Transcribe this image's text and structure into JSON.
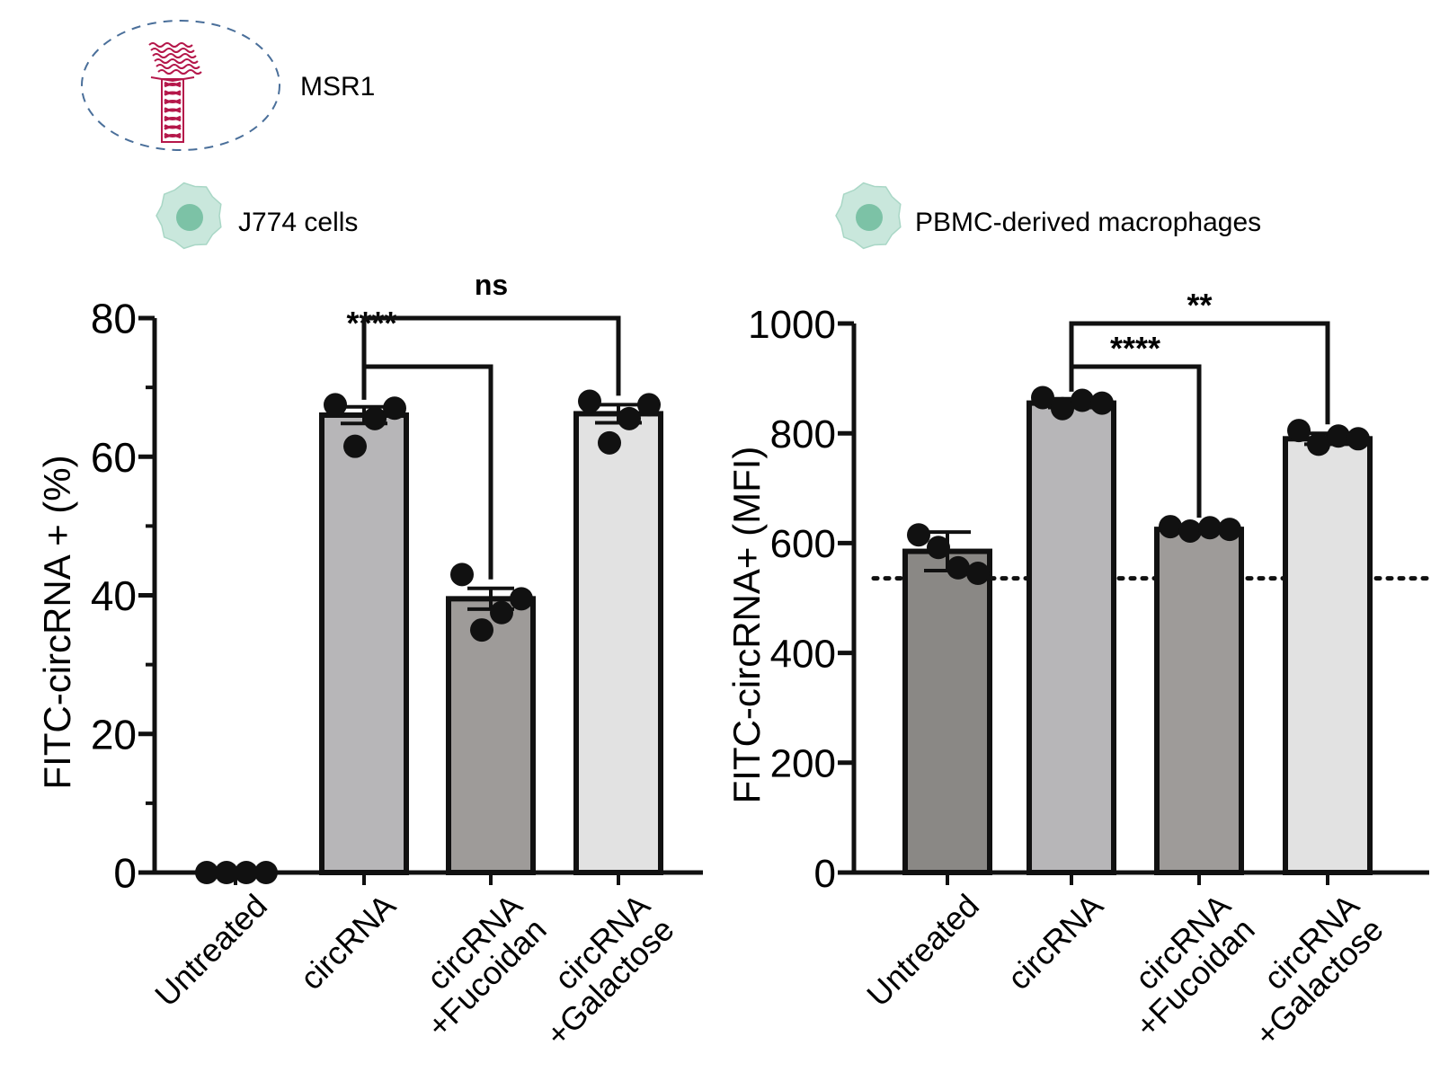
{
  "header": {
    "receptor_label": "MSR1",
    "left_cell_label": "J774 cells",
    "right_cell_label": "PBMC-derived macrophages"
  },
  "colors": {
    "receptor": "#b5174a",
    "oval_dash": "#4a6f9a",
    "cell_outer": "#c9e7dc",
    "cell_nucleus": "#7cc2a6"
  },
  "chart_data": [
    {
      "type": "bar",
      "ylabel": "FITC-circRNA + (%)",
      "xlabel": "",
      "ylim": [
        0,
        80
      ],
      "yticks": [
        0,
        20,
        40,
        60,
        80
      ],
      "categories": [
        "Untreated",
        "circRNA",
        "circRNA\n+Fucoidan",
        "circRNA\n+Galactose"
      ],
      "values": [
        0,
        66,
        39.5,
        66.2
      ],
      "sem": [
        0,
        1.2,
        1.5,
        1.3
      ],
      "bar_colors": [
        "#8a8885",
        "#b7b6b8",
        "#9e9b99",
        "#e2e2e2"
      ],
      "points": [
        [
          0,
          0,
          0,
          0
        ],
        [
          67.5,
          61.5,
          65.5,
          67
        ],
        [
          43,
          35,
          37.5,
          39.5
        ],
        [
          68,
          62,
          65.5,
          67.5
        ]
      ],
      "significance": [
        {
          "from": 1,
          "to": 2,
          "label": "****"
        },
        {
          "from": 1,
          "to": 3,
          "label": "ns"
        }
      ],
      "grid": false,
      "reference_line": null
    },
    {
      "type": "bar",
      "ylabel": "FITC-circRNA+ (MFI)",
      "xlabel": "",
      "ylim": [
        0,
        1000
      ],
      "yticks": [
        0,
        200,
        400,
        600,
        800,
        1000
      ],
      "categories": [
        "Untreated",
        "circRNA",
        "circRNA\n+Fucoidan",
        "circRNA\n+Galactose"
      ],
      "values": [
        585,
        855,
        625,
        790
      ],
      "sem": [
        35,
        8,
        5,
        10
      ],
      "bar_colors": [
        "#8a8885",
        "#b7b6b8",
        "#9e9b99",
        "#e2e2e2"
      ],
      "points": [
        [
          615,
          592,
          555,
          545
        ],
        [
          865,
          845,
          860,
          855
        ],
        [
          630,
          622,
          628,
          625
        ],
        [
          805,
          780,
          795,
          790
        ]
      ],
      "significance": [
        {
          "from": 1,
          "to": 2,
          "label": "****"
        },
        {
          "from": 1,
          "to": 3,
          "label": "**"
        }
      ],
      "grid": false,
      "reference_line": 585
    }
  ]
}
